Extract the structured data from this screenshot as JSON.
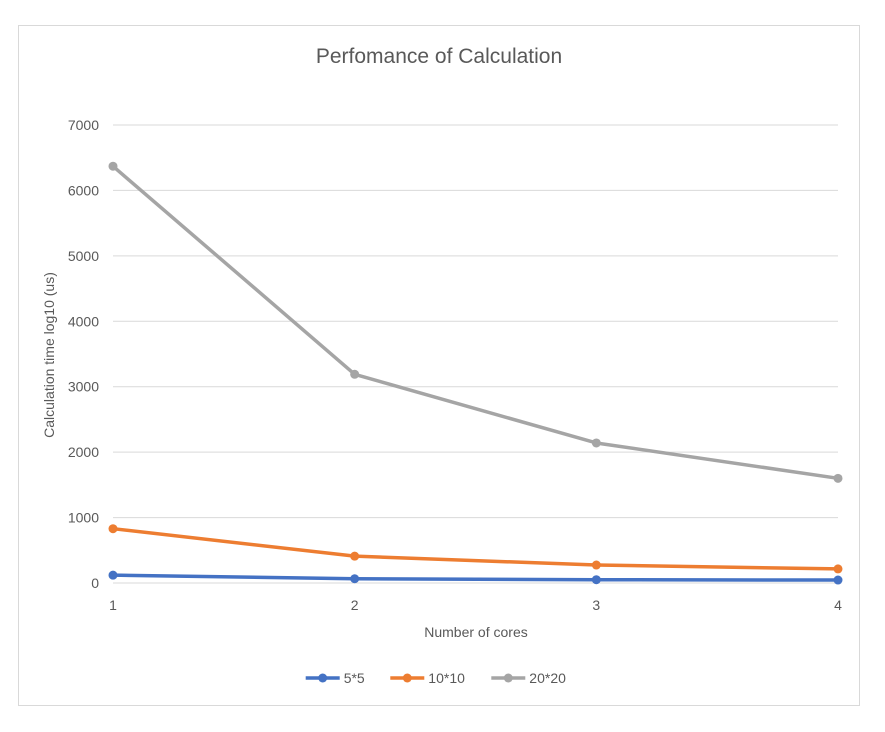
{
  "chart_data": {
    "type": "line",
    "title": "Perfomance of Calculation",
    "xlabel": "Number of cores",
    "ylabel": "Calculation time log10 (us)",
    "x": [
      1,
      2,
      3,
      4
    ],
    "x_tick_labels": [
      "1",
      "2",
      "3",
      "4"
    ],
    "ylim": [
      0,
      7000
    ],
    "y_ticks": [
      0,
      1000,
      2000,
      3000,
      4000,
      5000,
      6000,
      7000
    ],
    "grid": true,
    "legend_position": "bottom",
    "series": [
      {
        "name": "5*5",
        "color": "#4472c4",
        "values": [
          120,
          65,
          50,
          45
        ]
      },
      {
        "name": "10*10",
        "color": "#ed7d31",
        "values": [
          830,
          410,
          275,
          215
        ]
      },
      {
        "name": "20*20",
        "color": "#a5a5a5",
        "values": [
          6370,
          3190,
          2140,
          1600
        ]
      }
    ]
  }
}
